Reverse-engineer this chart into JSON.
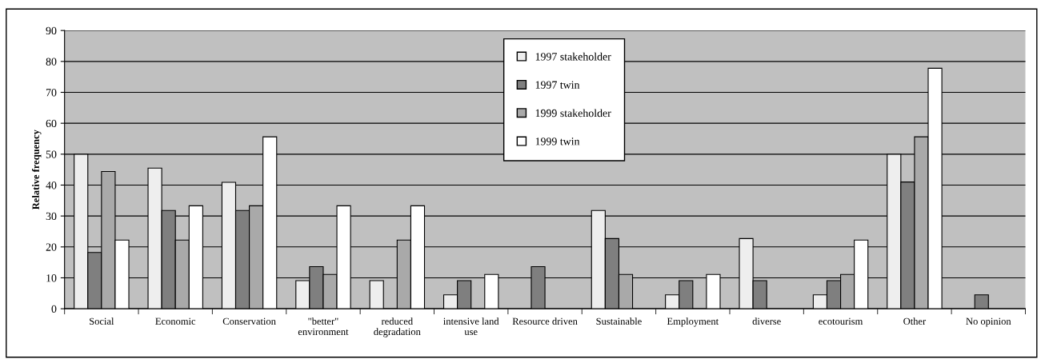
{
  "chart_data": {
    "type": "bar",
    "ylabel": "Relative frequency",
    "categories": [
      "Social",
      "Economic",
      "Conservation",
      "\"better\"\nenvironment",
      "reduced\ndegradation",
      "intensive land\nuse",
      "Resource driven",
      "Sustainable",
      "Employment",
      "diverse",
      "ecotourism",
      "Other",
      "No opinion"
    ],
    "series": [
      {
        "name": "1997 stakeholder",
        "color": "#eeeeee",
        "values": [
          50,
          45.5,
          40.9,
          9.1,
          9.1,
          4.5,
          null,
          31.8,
          4.5,
          22.7,
          4.5,
          50,
          null
        ]
      },
      {
        "name": "1997 twin",
        "color": "#7f7f7f",
        "values": [
          18.2,
          31.8,
          31.8,
          13.6,
          null,
          9.1,
          13.6,
          22.7,
          9.1,
          9.1,
          9.1,
          41,
          4.5
        ]
      },
      {
        "name": "1999 stakeholder",
        "color": "#a9a9a9",
        "values": [
          44.4,
          22.2,
          33.3,
          11.1,
          22.2,
          null,
          null,
          11.1,
          null,
          null,
          11.1,
          55.6,
          null
        ]
      },
      {
        "name": "1999 twin",
        "color": "#ffffff",
        "values": [
          22.2,
          33.3,
          55.6,
          33.3,
          33.3,
          11.1,
          null,
          null,
          11.1,
          null,
          22.2,
          77.8,
          null
        ]
      }
    ],
    "ylim": [
      0,
      90
    ],
    "yticks": [
      0,
      10,
      20,
      30,
      40,
      50,
      60,
      70,
      80,
      90
    ],
    "grid": "y",
    "legend": "top"
  }
}
